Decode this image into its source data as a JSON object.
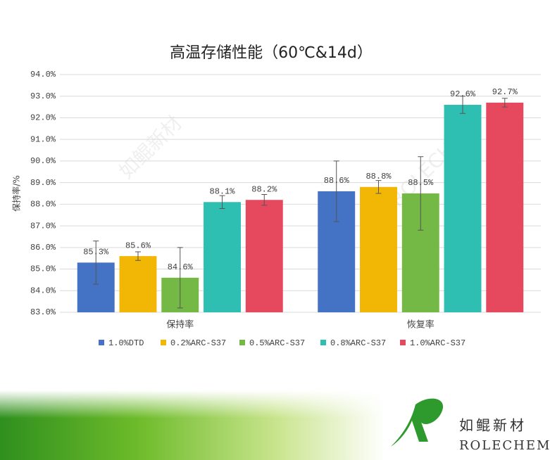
{
  "chart_data": {
    "type": "bar",
    "title": "高温存储性能（60℃&14d）",
    "y_label": "保持率/%",
    "categories": [
      "保持率",
      "恢复率"
    ],
    "series": [
      {
        "name": "1.0%DTD",
        "color": "#4472c4",
        "values": [
          85.3,
          88.6
        ],
        "value_labels": [
          "85.3%",
          "88.6%"
        ],
        "errors": [
          1.0,
          1.4
        ]
      },
      {
        "name": "0.2%ARC-S37",
        "color": "#f2b705",
        "values": [
          85.6,
          88.8
        ],
        "value_labels": [
          "85.6%",
          "88.8%"
        ],
        "errors": [
          0.2,
          0.3
        ]
      },
      {
        "name": "0.5%ARC-S37",
        "color": "#74b845",
        "values": [
          84.6,
          88.5
        ],
        "value_labels": [
          "84.6%",
          "88.5%"
        ],
        "errors": [
          1.4,
          1.7
        ]
      },
      {
        "name": "0.8%ARC-S37",
        "color": "#2ebfb2",
        "values": [
          88.1,
          92.6
        ],
        "value_labels": [
          "88.1%",
          "92.6%"
        ],
        "errors": [
          0.3,
          0.4
        ]
      },
      {
        "name": "1.0%ARC-S37",
        "color": "#e6495e",
        "values": [
          88.2,
          92.7
        ],
        "value_labels": [
          "88.2%",
          "92.7%"
        ],
        "errors": [
          0.25,
          0.2
        ]
      }
    ],
    "ylim": [
      83,
      94
    ],
    "yticks": [
      {
        "value": 83,
        "label": "83.0%"
      },
      {
        "value": 84,
        "label": "84.0%"
      },
      {
        "value": 85,
        "label": "85.0%"
      },
      {
        "value": 86,
        "label": "86.0%"
      },
      {
        "value": 87,
        "label": "87.0%"
      },
      {
        "value": 88,
        "label": "88.0%"
      },
      {
        "value": 89,
        "label": "89.0%"
      },
      {
        "value": 90,
        "label": "90.0%"
      },
      {
        "value": 91,
        "label": "91.0%"
      },
      {
        "value": 92,
        "label": "92.0%"
      },
      {
        "value": 93,
        "label": "93.0%"
      },
      {
        "value": 94,
        "label": "94.0%"
      }
    ],
    "grid": true,
    "legend": "bottom"
  },
  "logo": {
    "name": "如鲲新材",
    "brand": "ROLECHEM"
  }
}
